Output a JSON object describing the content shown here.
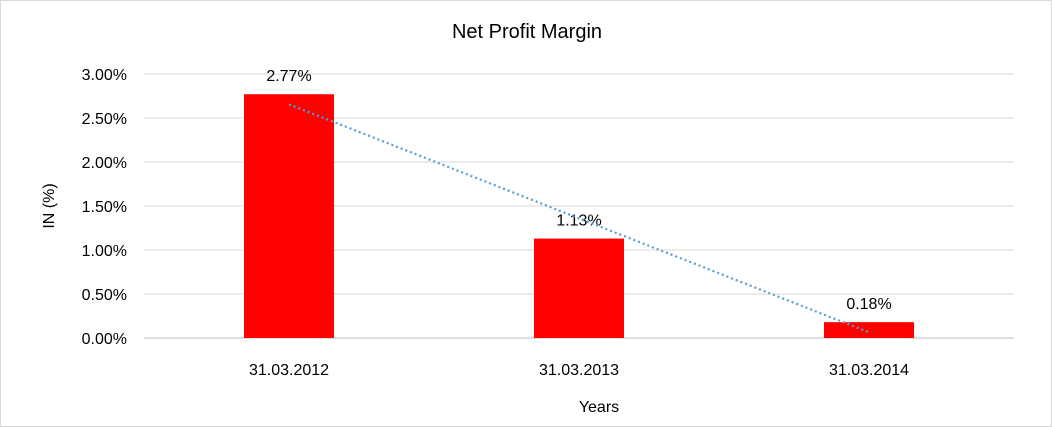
{
  "chart_data": {
    "type": "bar",
    "title": "Net Profit Margin",
    "xlabel": "Years",
    "ylabel": "IN (%)",
    "categories": [
      "31.03.2012",
      "31.03.2013",
      "31.03.2014"
    ],
    "values": [
      2.77,
      1.13,
      0.18
    ],
    "data_labels": [
      "2.77%",
      "1.13%",
      "0.18%"
    ],
    "ylim": [
      0,
      3
    ],
    "yticks": [
      0,
      0.5,
      1,
      1.5,
      2,
      2.5,
      3
    ],
    "ytick_labels": [
      "0.00%",
      "0.50%",
      "1.00%",
      "1.50%",
      "2.00%",
      "2.50%",
      "3.00%"
    ],
    "grid": true,
    "trendline": "linear",
    "colors": {
      "bar": "#ff0000",
      "trendline": "#5b9bd5",
      "grid": "#d9d9d9"
    }
  }
}
